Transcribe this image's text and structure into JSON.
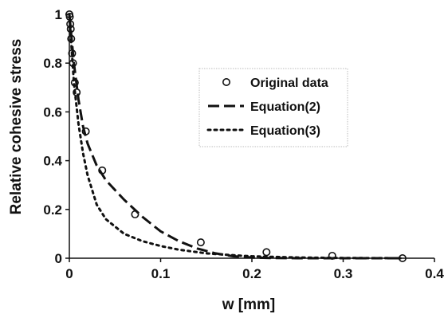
{
  "chart_data": {
    "type": "scatter",
    "xlabel": "w [mm]",
    "ylabel": "Relative cohesive stress",
    "xlim": [
      0,
      0.4
    ],
    "ylim": [
      0,
      1
    ],
    "x_ticks": [
      "0",
      "0.1",
      "0.2",
      "0.3",
      "0.4"
    ],
    "y_ticks": [
      "0",
      "0.2",
      "0.4",
      "0.6",
      "0.8",
      "1"
    ],
    "grid": false,
    "legend_position": "center-right",
    "series": [
      {
        "name": "Original data",
        "style": "markers",
        "marker": "open-circle",
        "color": "#111111",
        "x": [
          0.0,
          0.0005,
          0.001,
          0.0015,
          0.002,
          0.003,
          0.004,
          0.006,
          0.008,
          0.018,
          0.036,
          0.072,
          0.144,
          0.216,
          0.288,
          0.365
        ],
        "y": [
          1.0,
          0.99,
          0.96,
          0.94,
          0.9,
          0.84,
          0.8,
          0.72,
          0.68,
          0.52,
          0.36,
          0.18,
          0.065,
          0.025,
          0.01,
          0.0
        ]
      },
      {
        "name": "Equation(2)",
        "style": "long-dash",
        "color": "#111111",
        "x": [
          0.0,
          0.005,
          0.01,
          0.015,
          0.02,
          0.03,
          0.04,
          0.06,
          0.08,
          0.1,
          0.12,
          0.14,
          0.16,
          0.18,
          0.2,
          0.22,
          0.25,
          0.3,
          0.365
        ],
        "y": [
          1.0,
          0.8,
          0.65,
          0.54,
          0.47,
          0.38,
          0.32,
          0.24,
          0.17,
          0.11,
          0.07,
          0.04,
          0.02,
          0.008,
          0.003,
          0.001,
          0.0,
          0.0,
          0.0
        ]
      },
      {
        "name": "Equation(3)",
        "style": "dotted",
        "color": "#111111",
        "x": [
          0.0,
          0.005,
          0.01,
          0.015,
          0.02,
          0.03,
          0.04,
          0.06,
          0.08,
          0.1,
          0.12,
          0.15,
          0.18,
          0.2,
          0.25,
          0.3,
          0.365
        ],
        "y": [
          1.0,
          0.72,
          0.55,
          0.43,
          0.34,
          0.22,
          0.16,
          0.1,
          0.07,
          0.05,
          0.035,
          0.02,
          0.012,
          0.008,
          0.003,
          0.001,
          0.0
        ]
      }
    ]
  }
}
